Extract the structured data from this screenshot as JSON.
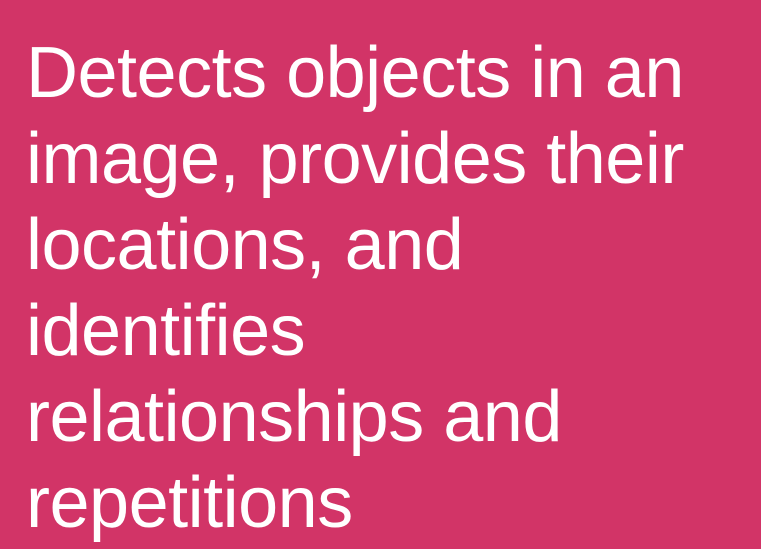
{
  "card": {
    "background_color": "#d23467",
    "text_color": "#ffffff",
    "lines": [
      "Detects objects in an",
      "image, provides their",
      "locations, and",
      "identifies",
      "relationships and",
      "repetitions"
    ]
  }
}
